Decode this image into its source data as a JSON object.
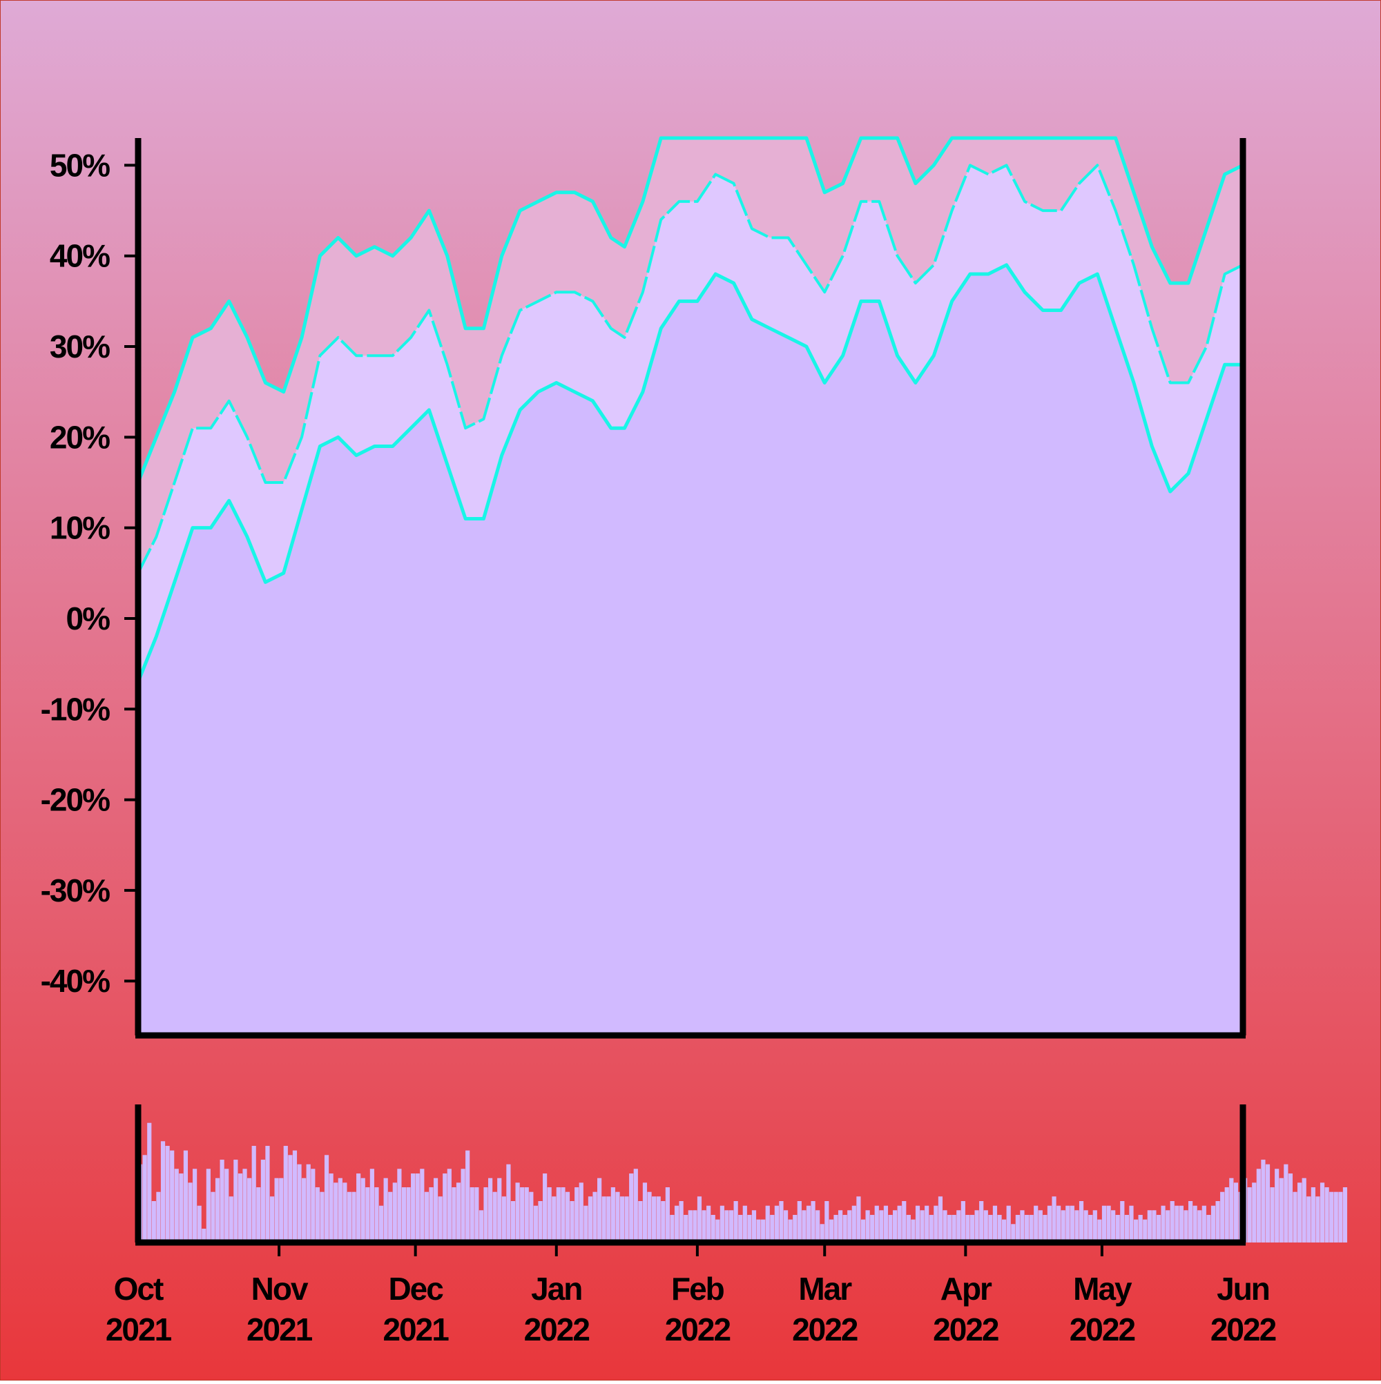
{
  "colors": {
    "background_top": "#dfaad6",
    "background_bottom": "#e8373b",
    "fill_main": "#d1baff",
    "fill_mid": "#dfc8ff",
    "fill_upper": "#e6b0d4",
    "line": "#19f5e7",
    "axis": "#000000"
  },
  "chart_data": [
    {
      "type": "area",
      "title": "",
      "xlabel": "",
      "ylabel": "",
      "ylim": [
        -46,
        53
      ],
      "y_ticks": [
        {
          "value": 50,
          "label": "50%"
        },
        {
          "value": 40,
          "label": "40%"
        },
        {
          "value": 30,
          "label": "30%"
        },
        {
          "value": 20,
          "label": "20%"
        },
        {
          "value": 10,
          "label": "10%"
        },
        {
          "value": 0,
          "label": "0%"
        },
        {
          "value": -10,
          "label": "-10%"
        },
        {
          "value": -20,
          "label": "-20%"
        },
        {
          "value": -30,
          "label": "-30%"
        },
        {
          "value": -40,
          "label": "-40%"
        }
      ],
      "x_range": [
        "2021-10-01",
        "2022-06-01"
      ],
      "x_ticks": [
        {
          "date": "2021-10-01",
          "line1": "Oct",
          "line2": "2021"
        },
        {
          "date": "2021-11-01",
          "line1": "Nov",
          "line2": "2021"
        },
        {
          "date": "2021-12-01",
          "line1": "Dec",
          "line2": "2021"
        },
        {
          "date": "2022-01-01",
          "line1": "Jan",
          "line2": "2022"
        },
        {
          "date": "2022-02-01",
          "line1": "Feb",
          "line2": "2022"
        },
        {
          "date": "2022-03-01",
          "line1": "Mar",
          "line2": "2022"
        },
        {
          "date": "2022-04-01",
          "line1": "Apr",
          "line2": "2022"
        },
        {
          "date": "2022-05-01",
          "line1": "May",
          "line2": "2022"
        },
        {
          "date": "2022-06-01",
          "line1": "Jun",
          "line2": "2022"
        }
      ],
      "grid": false,
      "legend": "none",
      "series": [
        {
          "role": "upper band",
          "style": "solid",
          "x": [
            "2021-10-01",
            "2021-10-05",
            "2021-10-09",
            "2021-10-13",
            "2021-10-17",
            "2021-10-21",
            "2021-10-25",
            "2021-10-29",
            "2021-11-02",
            "2021-11-06",
            "2021-11-10",
            "2021-11-14",
            "2021-11-18",
            "2021-11-22",
            "2021-11-26",
            "2021-11-30",
            "2021-12-04",
            "2021-12-08",
            "2021-12-12",
            "2021-12-16",
            "2021-12-20",
            "2021-12-24",
            "2021-12-28",
            "2022-01-01",
            "2022-01-05",
            "2022-01-09",
            "2022-01-13",
            "2022-01-16",
            "2022-01-20",
            "2022-01-24",
            "2022-01-28",
            "2022-02-01",
            "2022-02-05",
            "2022-02-09",
            "2022-02-13",
            "2022-02-17",
            "2022-02-21",
            "2022-02-25",
            "2022-03-01",
            "2022-03-05",
            "2022-03-09",
            "2022-03-13",
            "2022-03-17",
            "2022-03-21",
            "2022-03-25",
            "2022-03-29",
            "2022-04-02",
            "2022-04-06",
            "2022-04-10",
            "2022-04-14",
            "2022-04-18",
            "2022-04-22",
            "2022-04-26",
            "2022-04-30",
            "2022-05-04",
            "2022-05-08",
            "2022-05-12",
            "2022-05-16",
            "2022-05-20",
            "2022-05-24",
            "2022-05-28",
            "2022-06-01"
          ],
          "values": [
            15,
            20,
            25,
            31,
            32,
            35,
            31,
            26,
            25,
            31,
            40,
            42,
            40,
            41,
            40,
            42,
            45,
            40,
            32,
            32,
            40,
            45,
            46,
            47,
            47,
            46,
            42,
            41,
            46,
            53,
            53,
            53,
            53,
            53,
            53,
            53,
            53,
            53,
            47,
            48,
            53,
            53,
            53,
            48,
            50,
            53,
            53,
            53,
            53,
            53,
            53,
            53,
            53,
            53,
            53,
            47,
            41,
            37,
            37,
            43,
            49,
            50
          ]
        },
        {
          "role": "middle",
          "style": "dashed",
          "x": [
            "2021-10-01",
            "2021-10-05",
            "2021-10-09",
            "2021-10-13",
            "2021-10-17",
            "2021-10-21",
            "2021-10-25",
            "2021-10-29",
            "2021-11-02",
            "2021-11-06",
            "2021-11-10",
            "2021-11-14",
            "2021-11-18",
            "2021-11-22",
            "2021-11-26",
            "2021-11-30",
            "2021-12-04",
            "2021-12-08",
            "2021-12-12",
            "2021-12-16",
            "2021-12-20",
            "2021-12-24",
            "2021-12-28",
            "2022-01-01",
            "2022-01-05",
            "2022-01-09",
            "2022-01-13",
            "2022-01-16",
            "2022-01-20",
            "2022-01-24",
            "2022-01-28",
            "2022-02-01",
            "2022-02-05",
            "2022-02-09",
            "2022-02-13",
            "2022-02-17",
            "2022-02-21",
            "2022-02-25",
            "2022-03-01",
            "2022-03-05",
            "2022-03-09",
            "2022-03-13",
            "2022-03-17",
            "2022-03-21",
            "2022-03-25",
            "2022-03-29",
            "2022-04-02",
            "2022-04-06",
            "2022-04-10",
            "2022-04-14",
            "2022-04-18",
            "2022-04-22",
            "2022-04-26",
            "2022-04-30",
            "2022-05-04",
            "2022-05-08",
            "2022-05-12",
            "2022-05-16",
            "2022-05-20",
            "2022-05-24",
            "2022-05-28",
            "2022-06-01"
          ],
          "values": [
            5,
            9,
            15,
            21,
            21,
            24,
            20,
            15,
            15,
            20,
            29,
            31,
            29,
            29,
            29,
            31,
            34,
            28,
            21,
            22,
            29,
            34,
            35,
            36,
            36,
            35,
            32,
            31,
            36,
            44,
            46,
            46,
            49,
            48,
            43,
            42,
            42,
            39,
            36,
            40,
            46,
            46,
            40,
            37,
            39,
            45,
            50,
            49,
            50,
            46,
            45,
            45,
            48,
            50,
            45,
            39,
            32,
            26,
            26,
            30,
            38,
            39
          ]
        },
        {
          "role": "lower band",
          "style": "solid",
          "x": [
            "2021-10-01",
            "2021-10-05",
            "2021-10-09",
            "2021-10-13",
            "2021-10-17",
            "2021-10-21",
            "2021-10-25",
            "2021-10-29",
            "2021-11-02",
            "2021-11-06",
            "2021-11-10",
            "2021-11-14",
            "2021-11-18",
            "2021-11-22",
            "2021-11-26",
            "2021-11-30",
            "2021-12-04",
            "2021-12-08",
            "2021-12-12",
            "2021-12-16",
            "2021-12-20",
            "2021-12-24",
            "2021-12-28",
            "2022-01-01",
            "2022-01-05",
            "2022-01-09",
            "2022-01-13",
            "2022-01-16",
            "2022-01-20",
            "2022-01-24",
            "2022-01-28",
            "2022-02-01",
            "2022-02-05",
            "2022-02-09",
            "2022-02-13",
            "2022-02-17",
            "2022-02-21",
            "2022-02-25",
            "2022-03-01",
            "2022-03-05",
            "2022-03-09",
            "2022-03-13",
            "2022-03-17",
            "2022-03-21",
            "2022-03-25",
            "2022-03-29",
            "2022-04-02",
            "2022-04-06",
            "2022-04-10",
            "2022-04-14",
            "2022-04-18",
            "2022-04-22",
            "2022-04-26",
            "2022-04-30",
            "2022-05-04",
            "2022-05-08",
            "2022-05-12",
            "2022-05-16",
            "2022-05-20",
            "2022-05-24",
            "2022-05-28",
            "2022-06-01"
          ],
          "values": [
            -7,
            -2,
            4,
            10,
            10,
            13,
            9,
            4,
            5,
            12,
            19,
            20,
            18,
            19,
            19,
            21,
            23,
            17,
            11,
            11,
            18,
            23,
            25,
            26,
            25,
            24,
            21,
            21,
            25,
            32,
            35,
            35,
            38,
            37,
            33,
            32,
            31,
            30,
            26,
            29,
            35,
            35,
            29,
            26,
            29,
            35,
            38,
            38,
            39,
            36,
            34,
            34,
            37,
            38,
            32,
            26,
            19,
            14,
            16,
            22,
            28,
            28
          ]
        }
      ]
    },
    {
      "type": "bar",
      "title": "",
      "xlabel": "",
      "ylabel": "",
      "ylim": [
        0,
        30
      ],
      "x_range": [
        "2021-10-01",
        "2022-06-01"
      ],
      "x_ticks": [
        "2021-11-01",
        "2021-12-01",
        "2022-01-01",
        "2022-02-01",
        "2022-03-01",
        "2022-04-01",
        "2022-05-01"
      ],
      "grid": false,
      "legend": "none",
      "x_start": "2021-10-01",
      "x_step_days": 1,
      "values": [
        17,
        19,
        26,
        9,
        11,
        22,
        21,
        20,
        16,
        15,
        20,
        13,
        16,
        8,
        3,
        16,
        11,
        14,
        18,
        16,
        10,
        18,
        15,
        16,
        14,
        21,
        12,
        18,
        21,
        10,
        14,
        14,
        21,
        19,
        20,
        17,
        14,
        17,
        16,
        12,
        11,
        19,
        15,
        13,
        14,
        13,
        11,
        11,
        15,
        14,
        12,
        16,
        12,
        8,
        14,
        11,
        13,
        16,
        12,
        12,
        15,
        15,
        16,
        11,
        12,
        14,
        10,
        15,
        16,
        12,
        13,
        16,
        20,
        12,
        12,
        7,
        12,
        14,
        11,
        14,
        10,
        17,
        9,
        13,
        12,
        12,
        11,
        8,
        9,
        15,
        12,
        10,
        12,
        12,
        11,
        9,
        12,
        13,
        8,
        10,
        11,
        14,
        10,
        10,
        12,
        11,
        10,
        10,
        15,
        16,
        9,
        13,
        11,
        10,
        10,
        9,
        12,
        6,
        8,
        9,
        6,
        7,
        7,
        10,
        7,
        8,
        6,
        5,
        8,
        7,
        7,
        9,
        6,
        8,
        6,
        7,
        5,
        5,
        8,
        6,
        8,
        9,
        7,
        5,
        6,
        9,
        7,
        8,
        9,
        7,
        4,
        9,
        5,
        6,
        7,
        6,
        7,
        8,
        10,
        5,
        7,
        6,
        8,
        7,
        8,
        6,
        7,
        8,
        9,
        6,
        5,
        8,
        7,
        8,
        6,
        8,
        10,
        7,
        6,
        6,
        7,
        9,
        6,
        6,
        7,
        9,
        7,
        6,
        8,
        6,
        5,
        8,
        4,
        6,
        7,
        6,
        6,
        8,
        7,
        6,
        8,
        10,
        8,
        7,
        8,
        8,
        7,
        9,
        7,
        6,
        7,
        5,
        8,
        8,
        7,
        6,
        9,
        6,
        8,
        5,
        6,
        5,
        7,
        7,
        6,
        8,
        7,
        9,
        8,
        8,
        7,
        9,
        8,
        7,
        8,
        6,
        8,
        9,
        11,
        12,
        14,
        13,
        11,
        14,
        12,
        13,
        16,
        18,
        17,
        12,
        16,
        14,
        17,
        15,
        11,
        13,
        14,
        10,
        12,
        10,
        13,
        12,
        11,
        11,
        11,
        12
      ]
    }
  ]
}
